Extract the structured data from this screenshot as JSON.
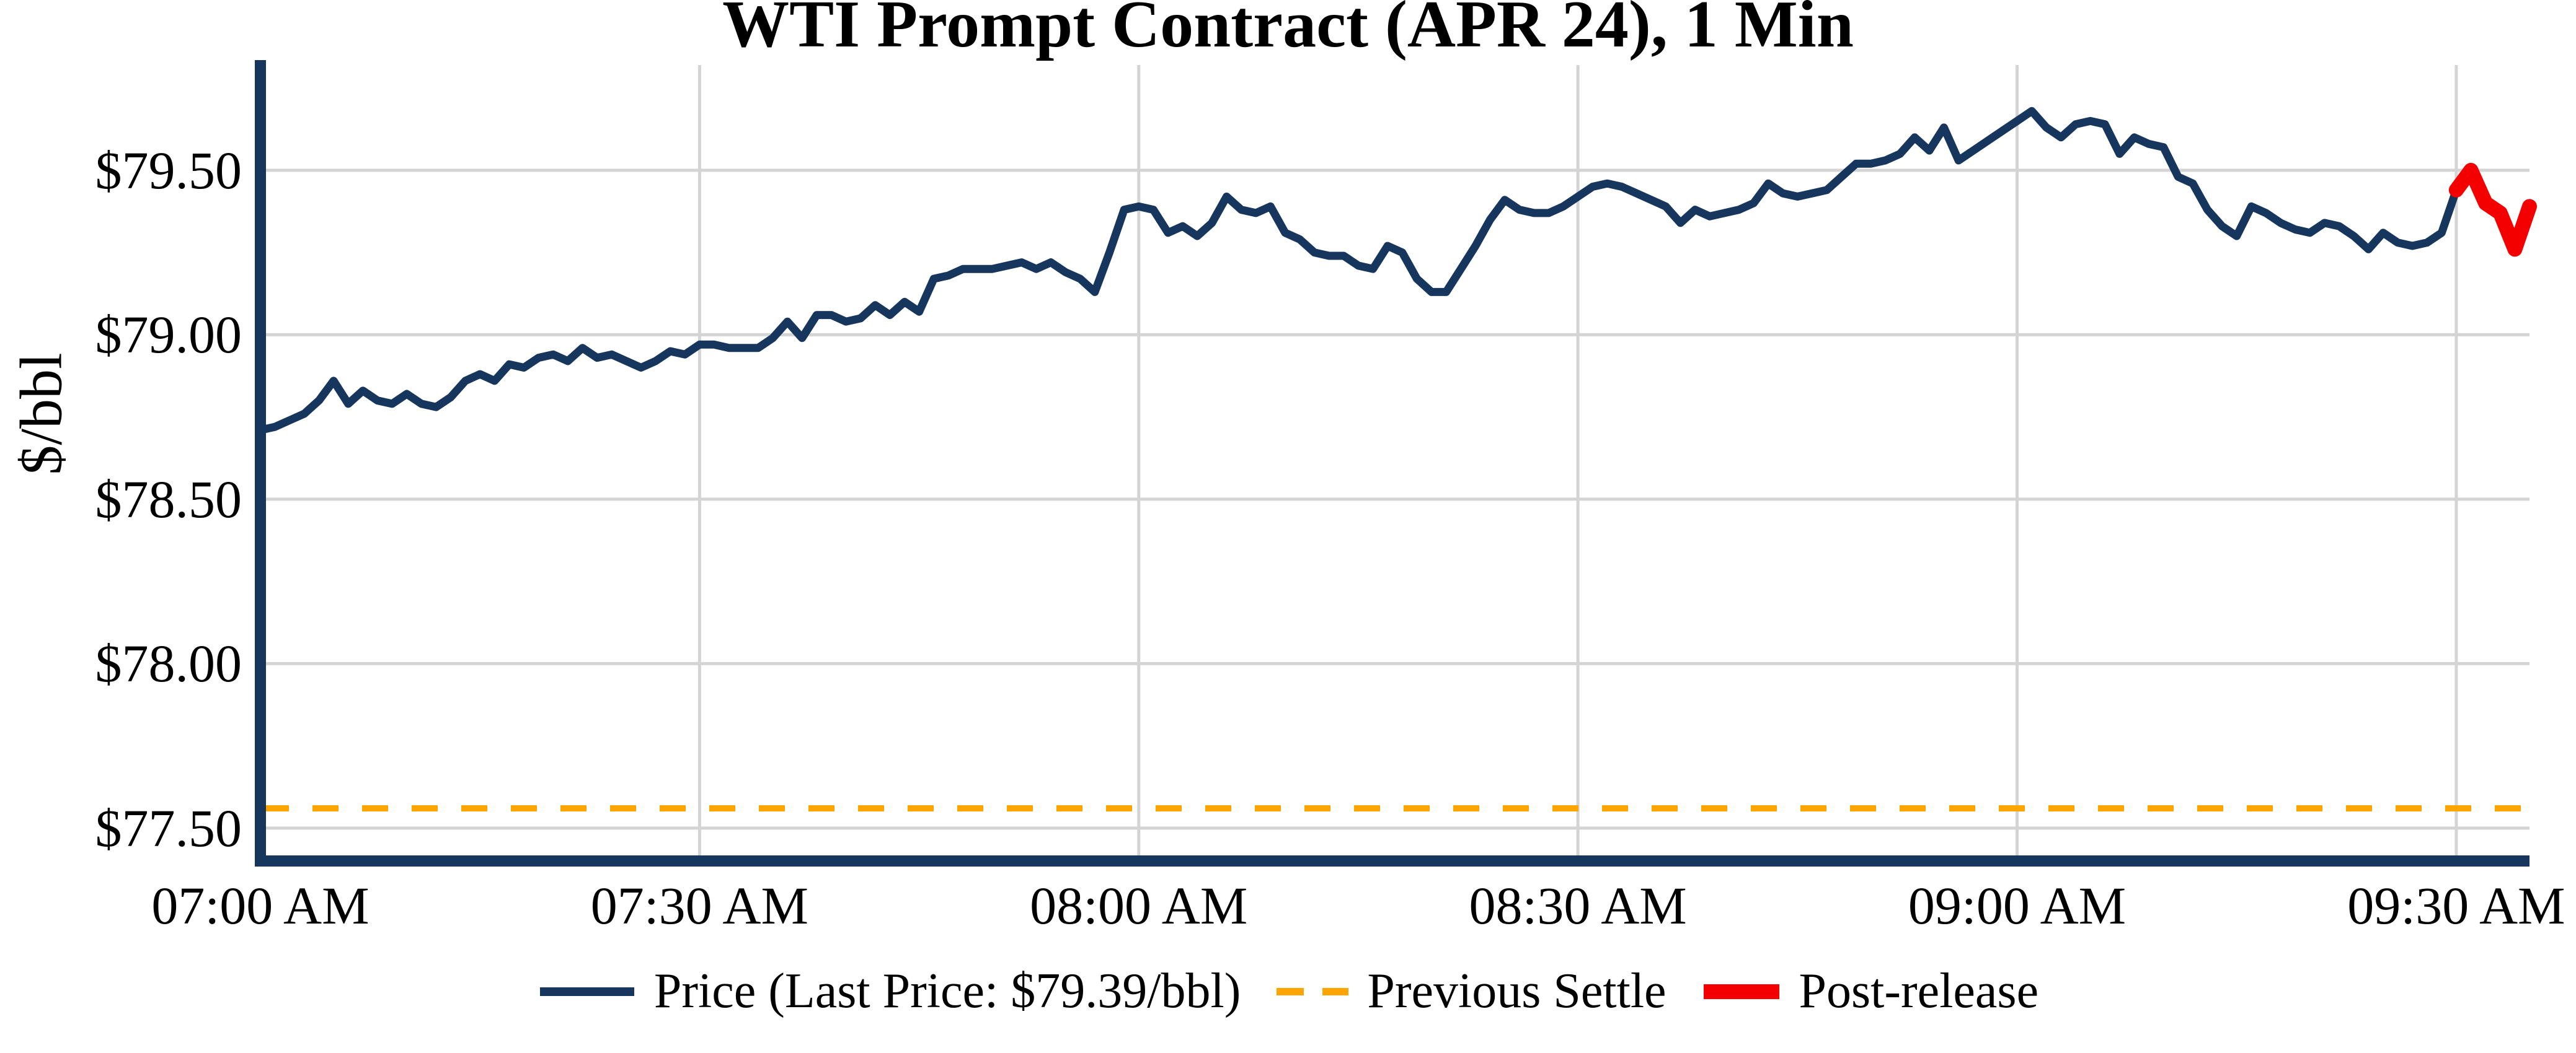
{
  "title": "WTI Prompt Contract (APR 24), 1 Min",
  "colors": {
    "price": "#17365D",
    "previous_settle": "#FFA500",
    "post_release": "#F40000",
    "grid": "#D4D4D4",
    "axis": "#17365D",
    "text": "#000000",
    "background": "#FFFFFF"
  },
  "legend": [
    {
      "label": "Price (Last Price: $79.39/bbl)",
      "swatch": "solid-line"
    },
    {
      "label": "Previous Settle",
      "swatch": "dashed-line"
    },
    {
      "label": "Post-release",
      "swatch": "thick-line"
    }
  ],
  "chart_data": {
    "type": "line",
    "title": "WTI Prompt Contract (APR 24), 1 Min",
    "xlabel": "",
    "ylabel": "$/bbl",
    "x_unit": "minutes since 07:00 AM, 1-minute bars",
    "xlim": [
      0,
      155
    ],
    "ylim": [
      77.4,
      79.82
    ],
    "x_ticks": [
      0,
      30,
      60,
      90,
      120,
      150
    ],
    "x_ticklabels": [
      "07:00 AM",
      "07:30 AM",
      "08:00 AM",
      "08:30 AM",
      "09:00 AM",
      "09:30 AM"
    ],
    "y_ticks": [
      77.5,
      78.0,
      78.5,
      79.0,
      79.5
    ],
    "y_ticklabels": [
      "$77.50",
      "$78.00",
      "$78.50",
      "$79.00",
      "$79.50"
    ],
    "grid": true,
    "legend_position": "bottom center",
    "previous_settle": 77.56,
    "last_price": 79.39,
    "last_price_label": "$79.39/bbl",
    "series": [
      {
        "name": "Price (Last Price: $79.39/bbl)",
        "role": "pre-release",
        "start_minute": 0,
        "values": [
          78.71,
          78.72,
          78.74,
          78.76,
          78.8,
          78.86,
          78.79,
          78.83,
          78.8,
          78.79,
          78.82,
          78.79,
          78.78,
          78.81,
          78.86,
          78.88,
          78.86,
          78.91,
          78.9,
          78.93,
          78.94,
          78.92,
          78.96,
          78.93,
          78.94,
          78.92,
          78.9,
          78.92,
          78.95,
          78.94,
          78.97,
          78.97,
          78.96,
          78.96,
          78.96,
          78.99,
          79.04,
          78.99,
          79.06,
          79.06,
          79.04,
          79.05,
          79.09,
          79.06,
          79.1,
          79.07,
          79.17,
          79.18,
          79.2,
          79.2,
          79.2,
          79.21,
          79.22,
          79.2,
          79.22,
          79.19,
          79.17,
          79.13,
          79.25,
          79.38,
          79.39,
          79.38,
          79.31,
          79.33,
          79.3,
          79.34,
          79.42,
          79.38,
          79.37,
          79.39,
          79.31,
          79.29,
          79.25,
          79.24,
          79.24,
          79.21,
          79.2,
          79.27,
          79.25,
          79.17,
          79.13,
          79.13,
          79.2,
          79.27,
          79.35,
          79.41,
          79.38,
          79.37,
          79.37,
          79.39,
          79.42,
          79.45,
          79.46,
          79.45,
          79.43,
          79.41,
          79.39,
          79.34,
          79.38,
          79.36,
          79.37,
          79.38,
          79.4,
          79.46,
          79.43,
          79.42,
          79.43,
          79.44,
          79.48,
          79.52,
          79.52,
          79.53,
          79.55,
          79.6,
          79.56,
          79.63,
          79.53,
          79.56,
          79.59,
          79.62,
          79.65,
          79.68,
          79.63,
          79.6,
          79.64,
          79.65,
          79.64,
          79.55,
          79.6,
          79.58,
          79.57,
          79.48,
          79.46,
          79.38,
          79.33,
          79.3,
          79.39,
          79.37,
          79.34,
          79.32,
          79.31,
          79.34,
          79.33,
          79.3,
          79.26,
          79.31,
          79.28,
          79.27,
          79.28,
          79.31,
          79.44
        ]
      },
      {
        "name": "Post-release",
        "role": "post-release",
        "start_minute": 150,
        "values": [
          79.44,
          79.5,
          79.4,
          79.37,
          79.26,
          79.39
        ]
      }
    ]
  }
}
